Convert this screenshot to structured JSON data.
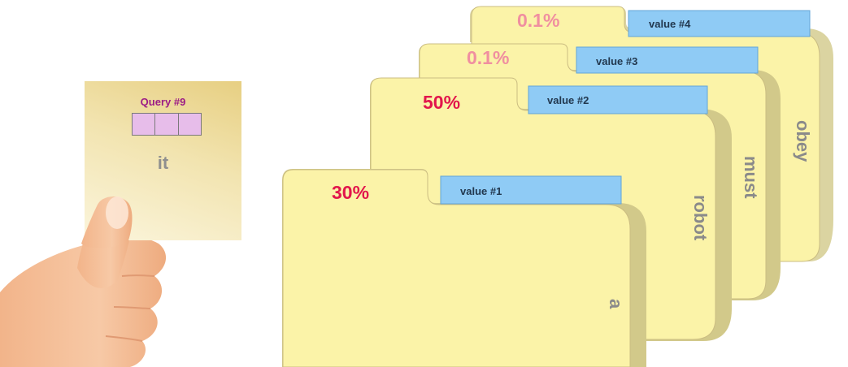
{
  "query": {
    "title": "Query #9",
    "word": "it",
    "cell_count": 3
  },
  "folders": [
    {
      "key": "value #1",
      "percent": "30%",
      "word": "a"
    },
    {
      "key": "value #2",
      "percent": "50%",
      "word": "robot"
    },
    {
      "key": "value #3",
      "percent": "0.1%",
      "word": "must"
    },
    {
      "key": "value #4",
      "percent": "0.1%",
      "word": "obey"
    }
  ],
  "colors": {
    "folder_fill": "#fbf3a8",
    "folder_shadow": "#d2c98a",
    "folder_edge": "#cbbd82",
    "key_tab": "#8fcbf5",
    "key_tab_border": "#63a6d8",
    "percent_strong": "#e2164c",
    "percent_faint": "#f08fa0",
    "query_title": "#9c1d86",
    "query_cells": "#e7bdea",
    "word_gray": "#8a8a8a"
  }
}
